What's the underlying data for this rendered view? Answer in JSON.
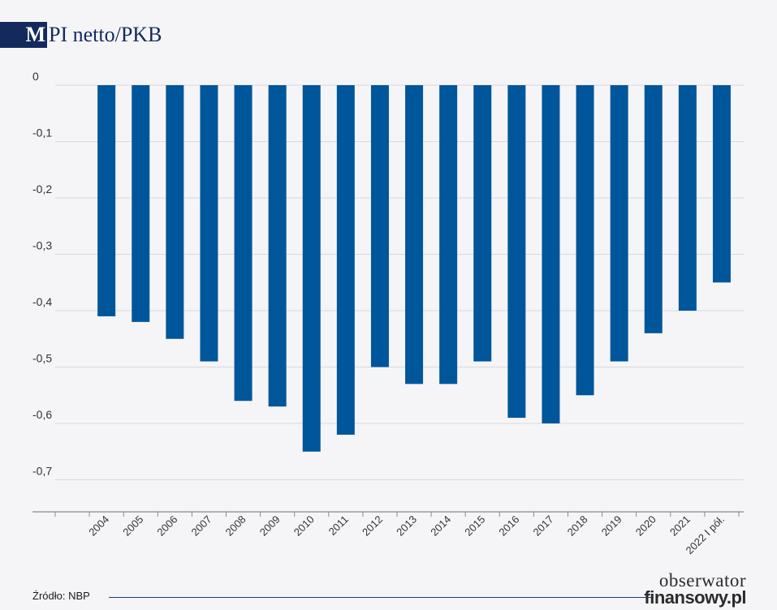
{
  "header": {
    "badge": "M",
    "title": "PI netto/PKB"
  },
  "chart_data": {
    "type": "bar",
    "title": "MPI netto/PKB",
    "xlabel": "",
    "ylabel": "",
    "categories": [
      "2004",
      "2005",
      "2006",
      "2007",
      "2008",
      "2009",
      "2010",
      "2011",
      "2012",
      "2013",
      "2014",
      "2015",
      "2016",
      "2017",
      "2018",
      "2019",
      "2020",
      "2021",
      "2022 I pół."
    ],
    "values": [
      -0.41,
      -0.42,
      -0.45,
      -0.49,
      -0.56,
      -0.57,
      -0.65,
      -0.62,
      -0.5,
      -0.53,
      -0.53,
      -0.49,
      -0.59,
      -0.6,
      -0.55,
      -0.49,
      -0.44,
      -0.4,
      -0.35
    ],
    "ylim": [
      -0.75,
      0
    ],
    "yticks": [
      0,
      -0.1,
      -0.2,
      -0.3,
      -0.4,
      -0.5,
      -0.6,
      -0.7
    ],
    "ytick_labels": [
      "0",
      "-0,1",
      "-0,2",
      "-0,3",
      "-0,4",
      "-0,5",
      "-0,6",
      "-0,7"
    ],
    "grid": true,
    "bar_color": "#00569b"
  },
  "footer": {
    "source": "Źródło: NBP",
    "logo_top": "obserwator",
    "logo_bottom": "finansowy.pl"
  },
  "colors": {
    "brand": "#152a5c",
    "bar": "#00569b",
    "grid": "#d9d9de"
  }
}
